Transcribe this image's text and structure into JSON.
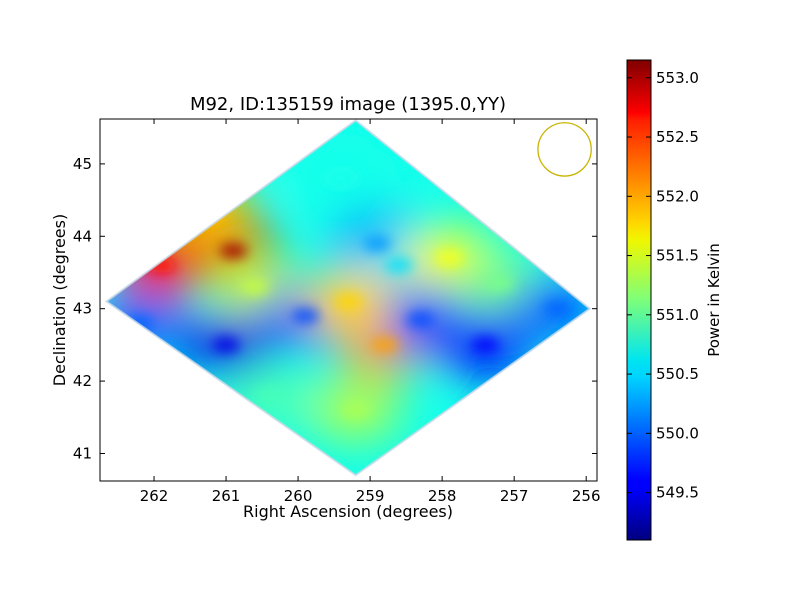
{
  "chart_data": {
    "type": "heatmap",
    "title": "M92, ID:135159 image (1395.0,YY)",
    "xlabel": "Right Ascension (degrees)",
    "ylabel": "Declination (degrees)",
    "x_inverted": true,
    "xlim": [
      262.75,
      255.85
    ],
    "ylim": [
      40.62,
      45.62
    ],
    "xticks": [
      262,
      261,
      260,
      259,
      258,
      257,
      256
    ],
    "yticks": [
      41,
      42,
      43,
      44,
      45
    ],
    "colormap": "jet",
    "colorbar": {
      "label": "Power in Kelvin",
      "vmin": 549.1,
      "vmax": 553.15,
      "ticks": [
        "549.5",
        "550.0",
        "550.5",
        "551.0",
        "551.5",
        "552.0",
        "552.5",
        "553.0"
      ]
    },
    "footprint": {
      "shape": "diamond",
      "corners": [
        {
          "ra": 262.66,
          "dec": 43.1
        },
        {
          "ra": 259.2,
          "dec": 45.6
        },
        {
          "ra": 255.95,
          "dec": 43.0
        },
        {
          "ra": 259.2,
          "dec": 40.7
        }
      ]
    },
    "beam_marker": {
      "ra": 256.3,
      "dec": 45.2,
      "radius_deg": 0.37,
      "color": "#c8b400"
    },
    "features": [
      {
        "ra": 260.9,
        "dec": 43.8,
        "value": 553.0
      },
      {
        "ra": 261.9,
        "dec": 43.6,
        "value": 552.6
      },
      {
        "ra": 261.2,
        "dec": 44.3,
        "value": 551.9
      },
      {
        "ra": 260.6,
        "dec": 43.3,
        "value": 551.4
      },
      {
        "ra": 258.8,
        "dec": 42.5,
        "value": 552.0
      },
      {
        "ra": 259.4,
        "dec": 44.8,
        "value": 550.7
      },
      {
        "ra": 258.9,
        "dec": 43.9,
        "value": 550.2
      },
      {
        "ra": 258.6,
        "dec": 43.6,
        "value": 550.5
      },
      {
        "ra": 257.9,
        "dec": 43.7,
        "value": 551.6
      },
      {
        "ra": 257.2,
        "dec": 43.35,
        "value": 551.1
      },
      {
        "ra": 256.4,
        "dec": 43.0,
        "value": 550.0
      },
      {
        "ra": 257.4,
        "dec": 42.5,
        "value": 549.6
      },
      {
        "ra": 258.3,
        "dec": 42.85,
        "value": 549.9
      },
      {
        "ra": 259.9,
        "dec": 42.9,
        "value": 549.9
      },
      {
        "ra": 261.0,
        "dec": 42.5,
        "value": 549.5
      },
      {
        "ra": 262.2,
        "dec": 42.8,
        "value": 550.0
      },
      {
        "ra": 259.2,
        "dec": 41.6,
        "value": 551.3
      },
      {
        "ra": 260.4,
        "dec": 41.8,
        "value": 550.9
      },
      {
        "ra": 259.3,
        "dec": 43.1,
        "value": 551.8
      }
    ]
  }
}
